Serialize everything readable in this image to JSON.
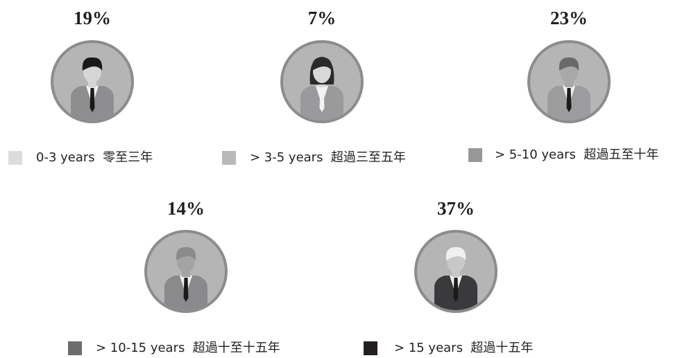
{
  "chart_data": {
    "type": "pictorial",
    "categories": [
      "0-3 years  零至三年",
      "> 3-5 years  超過三至五年",
      "> 5-10 years  超過五至十年",
      "> 10-15 years  超過十至十五年",
      "> 15 years  超過十五年"
    ],
    "values": [
      19,
      7,
      23,
      14,
      37
    ],
    "value_labels": [
      "19%",
      "7%",
      "23%",
      "14%",
      "37%"
    ],
    "colors": [
      "#dcdcdd",
      "#b9b9ba",
      "#98989a",
      "#6d6d6f",
      "#231f20"
    ]
  }
}
